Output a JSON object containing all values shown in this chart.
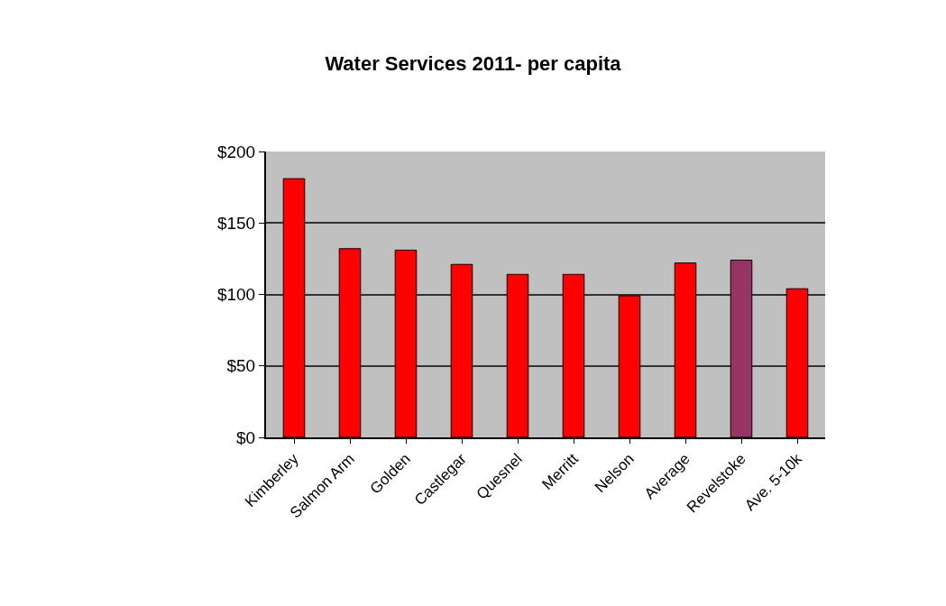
{
  "chart_data": {
    "type": "bar",
    "title": "Water Services 2011- per capita",
    "categories": [
      "Kimberley",
      "Salmon Arm",
      "Golden",
      "Castlegar",
      "Quesnel",
      "Merritt",
      "Nelson",
      "Average",
      "Revelstoke",
      "Ave. 5-10k"
    ],
    "values": [
      181,
      132,
      131,
      121,
      114,
      114,
      99,
      122,
      124,
      104
    ],
    "colors": [
      "#ff0000",
      "#ff0000",
      "#ff0000",
      "#ff0000",
      "#ff0000",
      "#ff0000",
      "#ff0000",
      "#ff0000",
      "#993366",
      "#ff0000"
    ],
    "ylim": [
      0,
      200
    ],
    "yticks": [
      {
        "value": 0,
        "label": "$0"
      },
      {
        "value": 50,
        "label": "$50"
      },
      {
        "value": 100,
        "label": "$100"
      },
      {
        "value": 150,
        "label": "$150"
      },
      {
        "value": 200,
        "label": "$200"
      }
    ],
    "grid": "y"
  }
}
